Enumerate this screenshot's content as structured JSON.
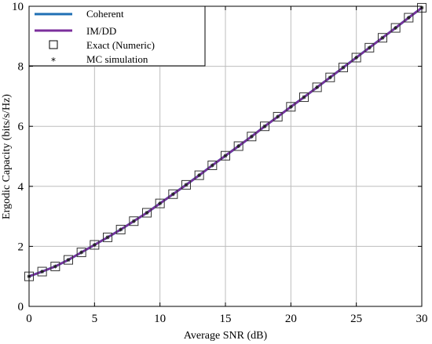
{
  "chart_data": {
    "type": "line",
    "title": "",
    "xlabel": "Average SNR (dB)",
    "ylabel": "Ergodic Capacity (bits/s/Hz)",
    "xlim": [
      0,
      30
    ],
    "ylim": [
      0,
      10
    ],
    "xticks": [
      0,
      5,
      10,
      15,
      20,
      25,
      30
    ],
    "yticks": [
      0,
      2,
      4,
      6,
      8,
      10
    ],
    "grid": true,
    "legend_position": "top-left",
    "x": [
      0,
      1,
      2,
      3,
      4,
      5,
      6,
      7,
      8,
      9,
      10,
      11,
      12,
      13,
      14,
      15,
      16,
      17,
      18,
      19,
      20,
      21,
      22,
      23,
      24,
      25,
      26,
      27,
      28,
      29,
      30
    ],
    "series": [
      {
        "name": "Coherent",
        "style": "line",
        "color": "#1f6fb4",
        "values": [
          1.0,
          1.16,
          1.33,
          1.55,
          1.8,
          2.05,
          2.3,
          2.56,
          2.84,
          3.12,
          3.43,
          3.74,
          4.05,
          4.37,
          4.7,
          5.02,
          5.34,
          5.66,
          6.0,
          6.32,
          6.65,
          6.97,
          7.3,
          7.63,
          7.96,
          8.29,
          8.62,
          8.95,
          9.28,
          9.62,
          9.95
        ]
      },
      {
        "name": "IM/DD",
        "style": "line",
        "color": "#7b2f9c",
        "values": [
          1.0,
          1.16,
          1.33,
          1.55,
          1.8,
          2.05,
          2.3,
          2.56,
          2.84,
          3.12,
          3.43,
          3.74,
          4.05,
          4.37,
          4.7,
          5.02,
          5.34,
          5.66,
          6.0,
          6.32,
          6.65,
          6.97,
          7.3,
          7.63,
          7.96,
          8.29,
          8.62,
          8.95,
          9.28,
          9.62,
          9.95
        ]
      },
      {
        "name": "Exact (Numeric)",
        "style": "square-marker",
        "color": "#333333",
        "values": [
          1.0,
          1.16,
          1.33,
          1.55,
          1.8,
          2.05,
          2.3,
          2.56,
          2.84,
          3.12,
          3.43,
          3.74,
          4.05,
          4.37,
          4.7,
          5.02,
          5.34,
          5.66,
          6.0,
          6.32,
          6.65,
          6.97,
          7.3,
          7.63,
          7.96,
          8.29,
          8.62,
          8.95,
          9.28,
          9.62,
          9.95
        ]
      },
      {
        "name": "MC simulation",
        "style": "star-marker",
        "color": "#222222",
        "values": [
          1.0,
          1.16,
          1.33,
          1.55,
          1.8,
          2.05,
          2.3,
          2.56,
          2.84,
          3.12,
          3.43,
          3.74,
          4.05,
          4.37,
          4.7,
          5.02,
          5.34,
          5.66,
          6.0,
          6.32,
          6.65,
          6.97,
          7.3,
          7.63,
          7.96,
          8.29,
          8.62,
          8.95,
          9.28,
          9.62,
          9.95
        ]
      }
    ]
  }
}
